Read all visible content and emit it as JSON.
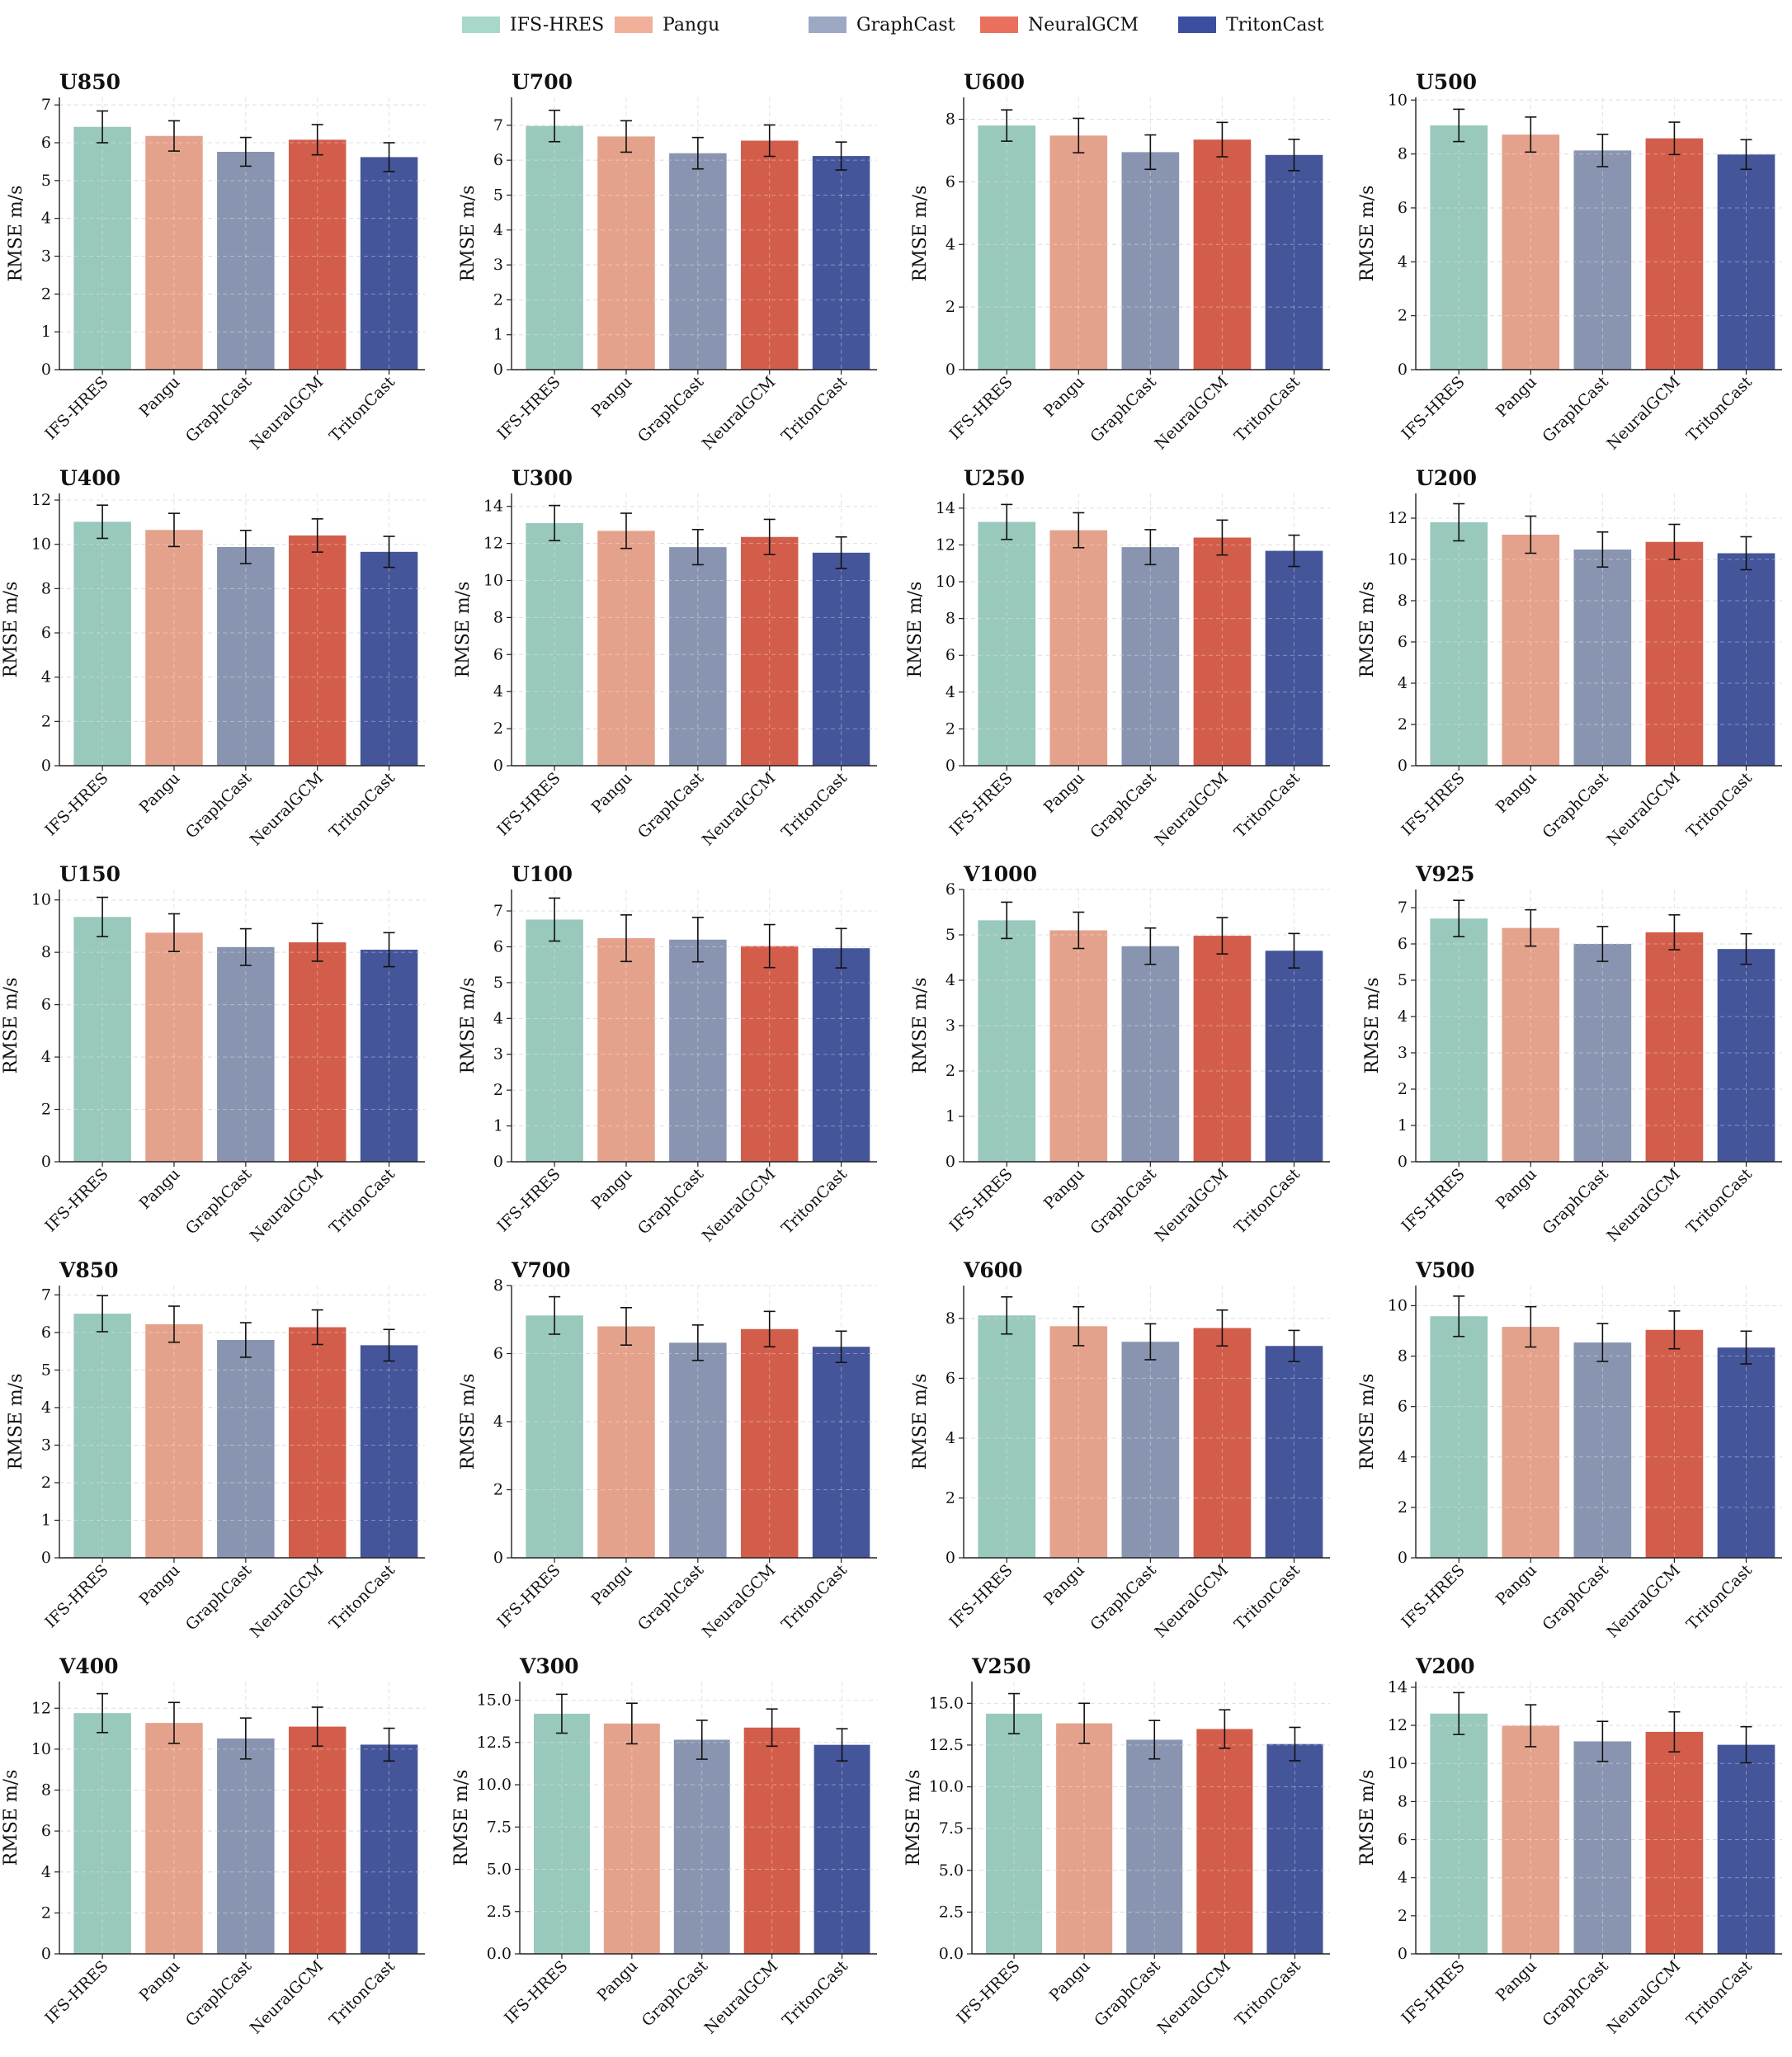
{
  "legend": [
    {
      "label": "IFS-HRES",
      "color": "#a8d8ca"
    },
    {
      "label": "Pangu",
      "color": "#f0b09a"
    },
    {
      "label": "GraphCast",
      "color": "#9da8c4"
    },
    {
      "label": "NeuralGCM",
      "color": "#e8705c"
    },
    {
      "label": "TritonCast",
      "color": "#3a4fa0"
    }
  ],
  "chart_data": [
    {
      "type": "bar",
      "title": "U850",
      "ylabel": "RMSE m/s",
      "ylim": [
        0,
        7.2
      ],
      "yticks": [
        0,
        1,
        2,
        3,
        4,
        5,
        6,
        7
      ],
      "categories": [
        "IFS-HRES",
        "Pangu",
        "GraphCast",
        "NeuralGCM",
        "TritonCast"
      ],
      "values": [
        6.42,
        6.18,
        5.76,
        6.08,
        5.62
      ],
      "errors": [
        0.42,
        0.4,
        0.38,
        0.4,
        0.38
      ],
      "colors": [
        "#99c8bc",
        "#e4a28c",
        "#8995b0",
        "#d35d4b",
        "#45559a"
      ],
      "grid": true
    },
    {
      "type": "bar",
      "title": "U700",
      "ylabel": "RMSE m/s",
      "ylim": [
        0,
        7.8
      ],
      "yticks": [
        0,
        1,
        2,
        3,
        4,
        5,
        6,
        7
      ],
      "categories": [
        "IFS-HRES",
        "Pangu",
        "GraphCast",
        "NeuralGCM",
        "TritonCast"
      ],
      "values": [
        6.98,
        6.68,
        6.2,
        6.56,
        6.12
      ],
      "errors": [
        0.45,
        0.45,
        0.45,
        0.45,
        0.4
      ],
      "colors": [
        "#99c8bc",
        "#e4a28c",
        "#8995b0",
        "#d35d4b",
        "#45559a"
      ],
      "grid": true
    },
    {
      "type": "bar",
      "title": "U600",
      "ylabel": "RMSE m/s",
      "ylim": [
        0,
        8.7
      ],
      "yticks": [
        0,
        2,
        4,
        6,
        8
      ],
      "categories": [
        "IFS-HRES",
        "Pangu",
        "GraphCast",
        "NeuralGCM",
        "TritonCast"
      ],
      "values": [
        7.8,
        7.48,
        6.95,
        7.35,
        6.86
      ],
      "errors": [
        0.5,
        0.55,
        0.55,
        0.55,
        0.5
      ],
      "colors": [
        "#99c8bc",
        "#e4a28c",
        "#8995b0",
        "#d35d4b",
        "#45559a"
      ],
      "grid": true
    },
    {
      "type": "bar",
      "title": "U500",
      "ylabel": "RMSE m/s",
      "ylim": [
        0,
        10.1
      ],
      "yticks": [
        0,
        2,
        4,
        6,
        8,
        10
      ],
      "categories": [
        "IFS-HRES",
        "Pangu",
        "GraphCast",
        "NeuralGCM",
        "TritonCast"
      ],
      "values": [
        9.06,
        8.72,
        8.13,
        8.58,
        7.98
      ],
      "errors": [
        0.6,
        0.65,
        0.6,
        0.6,
        0.55
      ],
      "colors": [
        "#99c8bc",
        "#e4a28c",
        "#8995b0",
        "#d35d4b",
        "#45559a"
      ],
      "grid": true
    },
    {
      "type": "bar",
      "title": "U400",
      "ylabel": "RMSE m/s",
      "ylim": [
        0,
        12.3
      ],
      "yticks": [
        0,
        2,
        4,
        6,
        8,
        10,
        12
      ],
      "categories": [
        "IFS-HRES",
        "Pangu",
        "GraphCast",
        "NeuralGCM",
        "TritonCast"
      ],
      "values": [
        11.02,
        10.65,
        9.88,
        10.4,
        9.66
      ],
      "errors": [
        0.75,
        0.75,
        0.75,
        0.75,
        0.7
      ],
      "colors": [
        "#99c8bc",
        "#e4a28c",
        "#8995b0",
        "#d35d4b",
        "#45559a"
      ],
      "grid": true
    },
    {
      "type": "bar",
      "title": "U300",
      "ylabel": "RMSE m/s",
      "ylim": [
        0,
        14.7
      ],
      "yticks": [
        0,
        2,
        4,
        6,
        8,
        10,
        12,
        14
      ],
      "categories": [
        "IFS-HRES",
        "Pangu",
        "GraphCast",
        "NeuralGCM",
        "TritonCast"
      ],
      "values": [
        13.1,
        12.68,
        11.8,
        12.35,
        11.5
      ],
      "errors": [
        0.95,
        0.95,
        0.95,
        0.95,
        0.85
      ],
      "colors": [
        "#99c8bc",
        "#e4a28c",
        "#8995b0",
        "#d35d4b",
        "#45559a"
      ],
      "grid": true
    },
    {
      "type": "bar",
      "title": "U250",
      "ylabel": "RMSE m/s",
      "ylim": [
        0,
        14.8
      ],
      "yticks": [
        0,
        2,
        4,
        6,
        8,
        10,
        12,
        14
      ],
      "categories": [
        "IFS-HRES",
        "Pangu",
        "GraphCast",
        "NeuralGCM",
        "TritonCast"
      ],
      "values": [
        13.25,
        12.8,
        11.88,
        12.4,
        11.68
      ],
      "errors": [
        0.95,
        0.95,
        0.95,
        0.95,
        0.85
      ],
      "colors": [
        "#99c8bc",
        "#e4a28c",
        "#8995b0",
        "#d35d4b",
        "#45559a"
      ],
      "grid": true
    },
    {
      "type": "bar",
      "title": "U200",
      "ylabel": "RMSE m/s",
      "ylim": [
        0,
        13.2
      ],
      "yticks": [
        0,
        2,
        4,
        6,
        8,
        10,
        12
      ],
      "categories": [
        "IFS-HRES",
        "Pangu",
        "GraphCast",
        "NeuralGCM",
        "TritonCast"
      ],
      "values": [
        11.8,
        11.2,
        10.48,
        10.85,
        10.3
      ],
      "errors": [
        0.9,
        0.9,
        0.85,
        0.85,
        0.8
      ],
      "colors": [
        "#99c8bc",
        "#e4a28c",
        "#8995b0",
        "#d35d4b",
        "#45559a"
      ],
      "grid": true
    },
    {
      "type": "bar",
      "title": "U150",
      "ylabel": "RMSE m/s",
      "ylim": [
        0,
        10.4
      ],
      "yticks": [
        0,
        2,
        4,
        6,
        8,
        10
      ],
      "categories": [
        "IFS-HRES",
        "Pangu",
        "GraphCast",
        "NeuralGCM",
        "TritonCast"
      ],
      "values": [
        9.35,
        8.75,
        8.2,
        8.38,
        8.1
      ],
      "errors": [
        0.75,
        0.72,
        0.7,
        0.72,
        0.65
      ],
      "colors": [
        "#99c8bc",
        "#e4a28c",
        "#8995b0",
        "#d35d4b",
        "#45559a"
      ],
      "grid": true
    },
    {
      "type": "bar",
      "title": "U100",
      "ylabel": "RMSE m/s",
      "ylim": [
        0,
        7.6
      ],
      "yticks": [
        0,
        1,
        2,
        3,
        4,
        5,
        6,
        7
      ],
      "categories": [
        "IFS-HRES",
        "Pangu",
        "GraphCast",
        "NeuralGCM",
        "TritonCast"
      ],
      "values": [
        6.76,
        6.24,
        6.2,
        6.02,
        5.96
      ],
      "errors": [
        0.6,
        0.65,
        0.62,
        0.6,
        0.55
      ],
      "colors": [
        "#99c8bc",
        "#e4a28c",
        "#8995b0",
        "#d35d4b",
        "#45559a"
      ],
      "grid": true
    },
    {
      "type": "bar",
      "title": "V1000",
      "ylabel": "RMSE m/s",
      "ylim": [
        0,
        6
      ],
      "yticks": [
        0,
        1,
        2,
        3,
        4,
        5,
        6
      ],
      "categories": [
        "IFS-HRES",
        "Pangu",
        "GraphCast",
        "NeuralGCM",
        "TritonCast"
      ],
      "values": [
        5.32,
        5.1,
        4.75,
        4.98,
        4.65
      ],
      "errors": [
        0.4,
        0.4,
        0.4,
        0.4,
        0.38
      ],
      "colors": [
        "#99c8bc",
        "#e4a28c",
        "#8995b0",
        "#d35d4b",
        "#45559a"
      ],
      "grid": true
    },
    {
      "type": "bar",
      "title": "V925",
      "ylabel": "RMSE m/s",
      "ylim": [
        0,
        7.5
      ],
      "yticks": [
        0,
        1,
        2,
        3,
        4,
        5,
        6,
        7
      ],
      "categories": [
        "IFS-HRES",
        "Pangu",
        "GraphCast",
        "NeuralGCM",
        "TritonCast"
      ],
      "values": [
        6.7,
        6.44,
        6.0,
        6.32,
        5.86
      ],
      "errors": [
        0.5,
        0.5,
        0.48,
        0.48,
        0.42
      ],
      "colors": [
        "#99c8bc",
        "#e4a28c",
        "#8995b0",
        "#d35d4b",
        "#45559a"
      ],
      "grid": true
    },
    {
      "type": "bar",
      "title": "V850",
      "ylabel": "RMSE m/s",
      "ylim": [
        0,
        7.25
      ],
      "yticks": [
        0,
        1,
        2,
        3,
        4,
        5,
        6,
        7
      ],
      "categories": [
        "IFS-HRES",
        "Pangu",
        "GraphCast",
        "NeuralGCM",
        "TritonCast"
      ],
      "values": [
        6.5,
        6.22,
        5.8,
        6.14,
        5.66
      ],
      "errors": [
        0.48,
        0.48,
        0.46,
        0.46,
        0.42
      ],
      "colors": [
        "#99c8bc",
        "#e4a28c",
        "#8995b0",
        "#d35d4b",
        "#45559a"
      ],
      "grid": true
    },
    {
      "type": "bar",
      "title": "V700",
      "ylabel": "RMSE m/s",
      "ylim": [
        0,
        8
      ],
      "yticks": [
        0,
        2,
        4,
        6,
        8
      ],
      "categories": [
        "IFS-HRES",
        "Pangu",
        "GraphCast",
        "NeuralGCM",
        "TritonCast"
      ],
      "values": [
        7.12,
        6.8,
        6.32,
        6.72,
        6.2
      ],
      "errors": [
        0.55,
        0.55,
        0.52,
        0.52,
        0.46
      ],
      "colors": [
        "#99c8bc",
        "#e4a28c",
        "#8995b0",
        "#d35d4b",
        "#45559a"
      ],
      "grid": true
    },
    {
      "type": "bar",
      "title": "V600",
      "ylabel": "RMSE m/s",
      "ylim": [
        0,
        9.1
      ],
      "yticks": [
        0,
        2,
        4,
        6,
        8
      ],
      "categories": [
        "IFS-HRES",
        "Pangu",
        "GraphCast",
        "NeuralGCM",
        "TritonCast"
      ],
      "values": [
        8.1,
        7.74,
        7.22,
        7.68,
        7.08
      ],
      "errors": [
        0.62,
        0.65,
        0.6,
        0.6,
        0.52
      ],
      "colors": [
        "#99c8bc",
        "#e4a28c",
        "#8995b0",
        "#d35d4b",
        "#45559a"
      ],
      "grid": true
    },
    {
      "type": "bar",
      "title": "V500",
      "ylabel": "RMSE m/s",
      "ylim": [
        0,
        10.8
      ],
      "yticks": [
        0,
        2,
        4,
        6,
        8,
        10
      ],
      "categories": [
        "IFS-HRES",
        "Pangu",
        "GraphCast",
        "NeuralGCM",
        "TritonCast"
      ],
      "values": [
        9.58,
        9.16,
        8.54,
        9.04,
        8.34
      ],
      "errors": [
        0.8,
        0.8,
        0.75,
        0.75,
        0.65
      ],
      "colors": [
        "#99c8bc",
        "#e4a28c",
        "#8995b0",
        "#d35d4b",
        "#45559a"
      ],
      "grid": true
    },
    {
      "type": "bar",
      "title": "V400",
      "ylabel": "RMSE m/s",
      "ylim": [
        0,
        13.3
      ],
      "yticks": [
        0,
        2,
        4,
        6,
        8,
        10,
        12
      ],
      "categories": [
        "IFS-HRES",
        "Pangu",
        "GraphCast",
        "NeuralGCM",
        "TritonCast"
      ],
      "values": [
        11.76,
        11.28,
        10.52,
        11.1,
        10.22
      ],
      "errors": [
        0.95,
        1.0,
        1.0,
        0.95,
        0.8
      ],
      "colors": [
        "#99c8bc",
        "#e4a28c",
        "#8995b0",
        "#d35d4b",
        "#45559a"
      ],
      "grid": true
    },
    {
      "type": "bar",
      "title": "V300",
      "ylabel": "RMSE m/s",
      "ylim": [
        0,
        16.1
      ],
      "yticks": [
        0,
        2.5,
        5,
        7.5,
        10,
        12.5,
        15
      ],
      "tick_labels": [
        "0.0",
        "2.5",
        "5.0",
        "7.5",
        "10.0",
        "12.5",
        "15.0"
      ],
      "categories": [
        "IFS-HRES",
        "Pangu",
        "GraphCast",
        "NeuralGCM",
        "TritonCast"
      ],
      "values": [
        14.2,
        13.62,
        12.66,
        13.38,
        12.36
      ],
      "errors": [
        1.15,
        1.2,
        1.15,
        1.1,
        0.95
      ],
      "colors": [
        "#99c8bc",
        "#e4a28c",
        "#8995b0",
        "#d35d4b",
        "#45559a"
      ],
      "grid": true
    },
    {
      "type": "bar",
      "title": "V250",
      "ylabel": "RMSE m/s",
      "ylim": [
        0,
        16.3
      ],
      "yticks": [
        0,
        2.5,
        5,
        7.5,
        10,
        12.5,
        15
      ],
      "tick_labels": [
        "0.0",
        "2.5",
        "5.0",
        "7.5",
        "10.0",
        "12.5",
        "15.0"
      ],
      "categories": [
        "IFS-HRES",
        "Pangu",
        "GraphCast",
        "NeuralGCM",
        "TritonCast"
      ],
      "values": [
        14.38,
        13.8,
        12.82,
        13.46,
        12.56
      ],
      "errors": [
        1.2,
        1.2,
        1.15,
        1.15,
        1.0
      ],
      "colors": [
        "#99c8bc",
        "#e4a28c",
        "#8995b0",
        "#d35d4b",
        "#45559a"
      ],
      "grid": true
    },
    {
      "type": "bar",
      "title": "V200",
      "ylabel": "RMSE m/s",
      "ylim": [
        0,
        14.3
      ],
      "yticks": [
        0,
        2,
        4,
        6,
        8,
        10,
        12,
        14
      ],
      "categories": [
        "IFS-HRES",
        "Pangu",
        "GraphCast",
        "NeuralGCM",
        "TritonCast"
      ],
      "values": [
        12.62,
        11.98,
        11.16,
        11.66,
        10.98
      ],
      "errors": [
        1.1,
        1.1,
        1.05,
        1.05,
        0.95
      ],
      "colors": [
        "#99c8bc",
        "#e4a28c",
        "#8995b0",
        "#d35d4b",
        "#45559a"
      ],
      "grid": true
    }
  ]
}
